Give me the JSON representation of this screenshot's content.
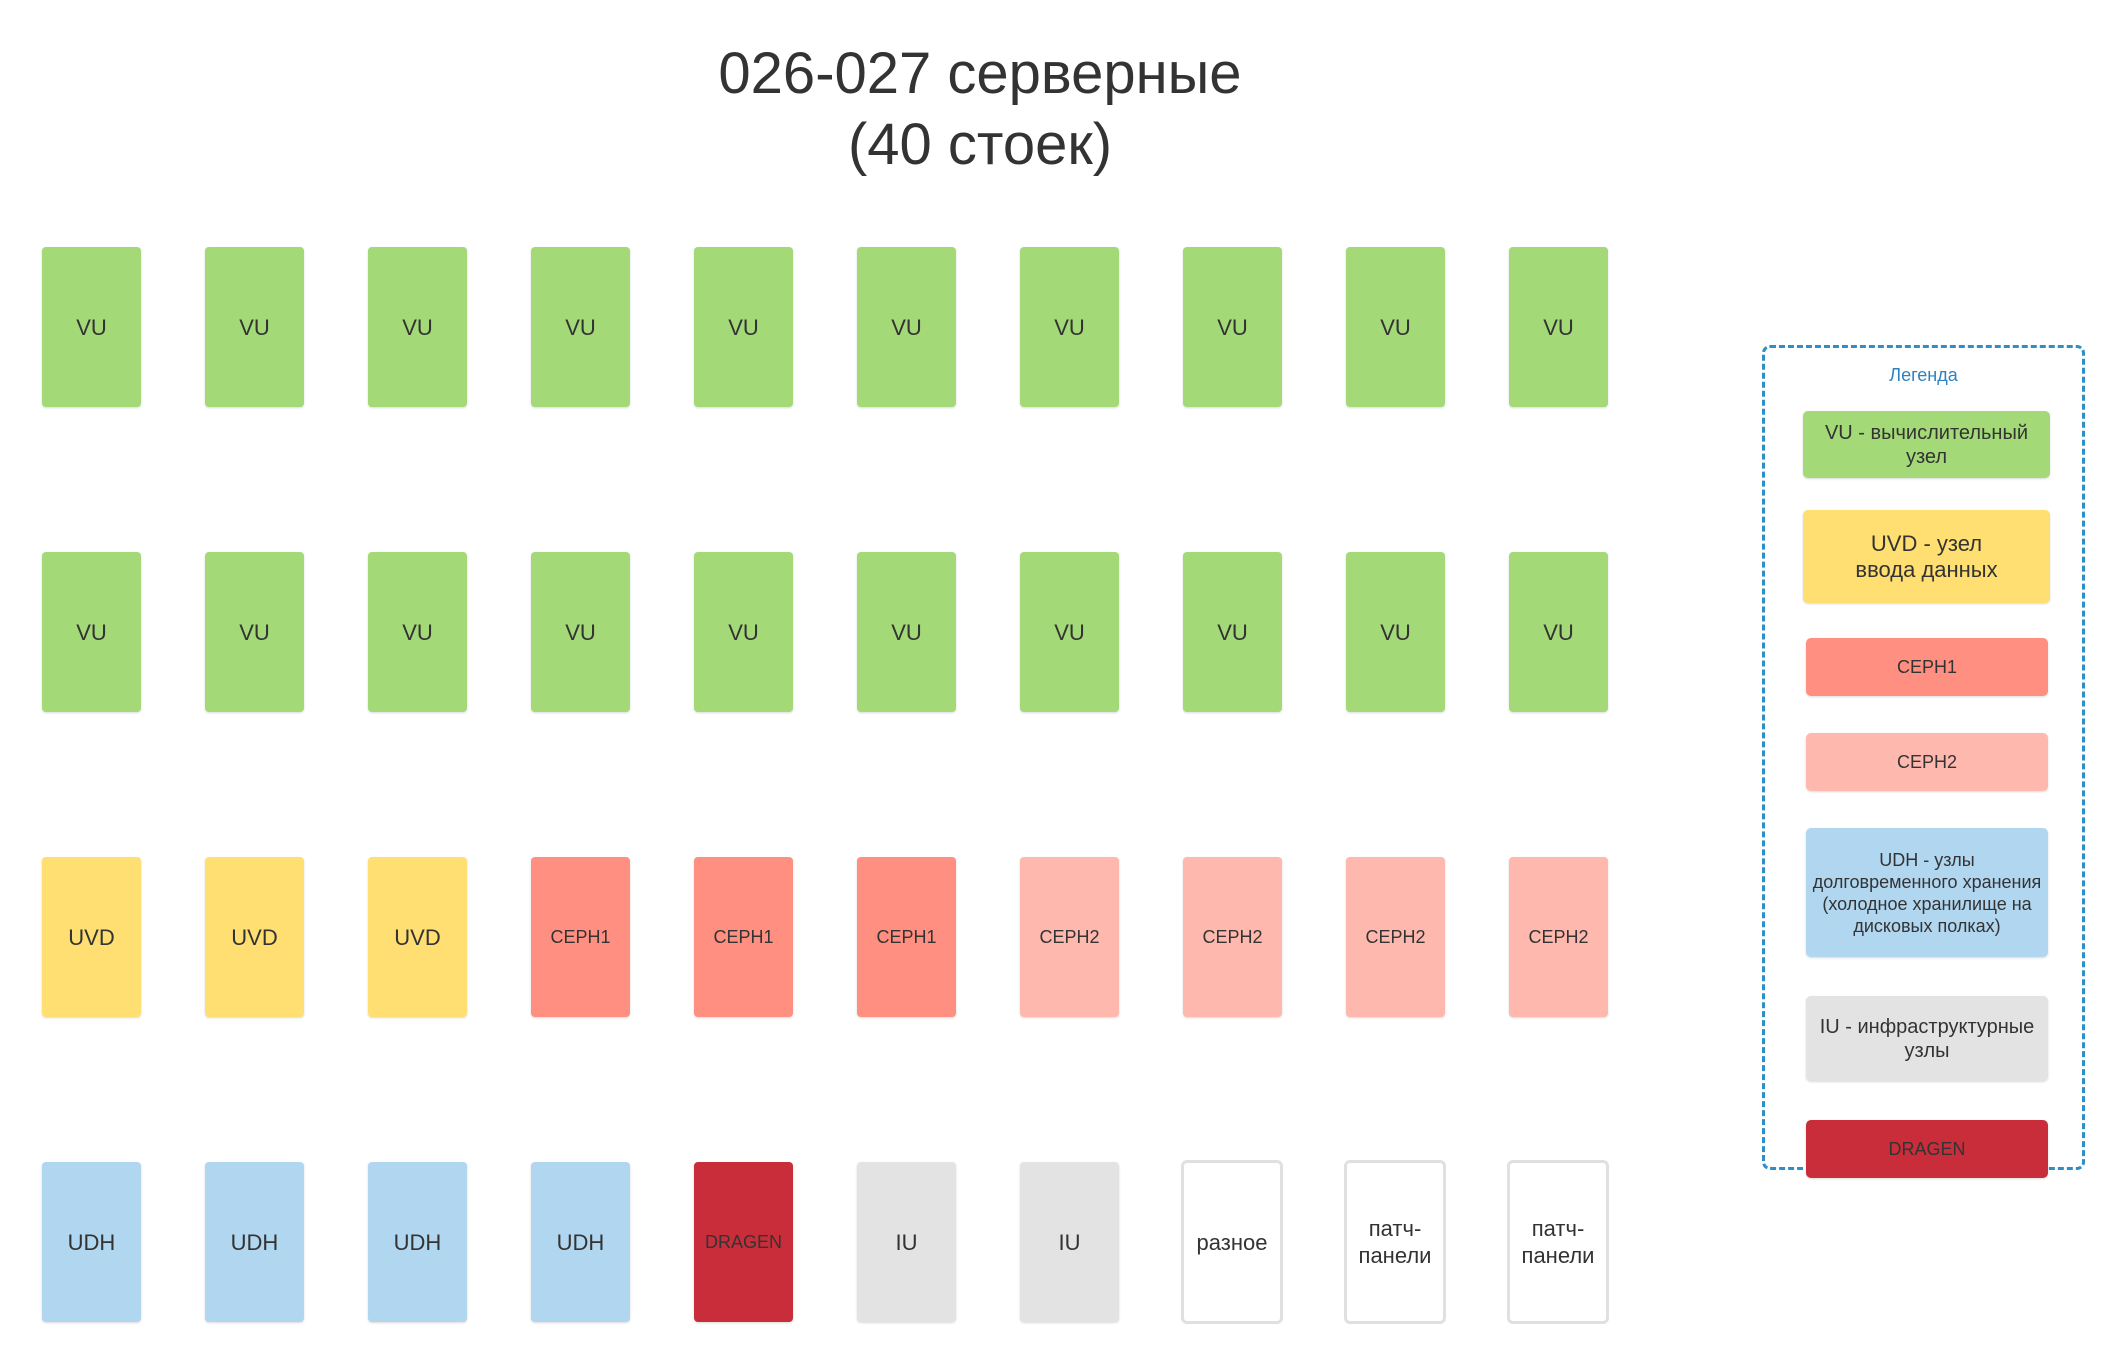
{
  "title": {
    "line1": "026-027 серверные",
    "line2": "(40 стоек)"
  },
  "colors": {
    "vu": "#a3d977",
    "uvd": "#ffdf71",
    "ceph1": "#ff8f80",
    "ceph2": "#ffb8ad",
    "udh": "#b1d6f0",
    "iu": "#e3e3e3",
    "dragen": "#c92d39",
    "other": "#ffffff"
  },
  "rows": [
    {
      "racks": [
        {
          "label": "VU",
          "type": "vu"
        },
        {
          "label": "VU",
          "type": "vu"
        },
        {
          "label": "VU",
          "type": "vu"
        },
        {
          "label": "VU",
          "type": "vu"
        },
        {
          "label": "VU",
          "type": "vu"
        },
        {
          "label": "VU",
          "type": "vu"
        },
        {
          "label": "VU",
          "type": "vu"
        },
        {
          "label": "VU",
          "type": "vu"
        },
        {
          "label": "VU",
          "type": "vu"
        },
        {
          "label": "VU",
          "type": "vu"
        }
      ]
    },
    {
      "racks": [
        {
          "label": "VU",
          "type": "vu"
        },
        {
          "label": "VU",
          "type": "vu"
        },
        {
          "label": "VU",
          "type": "vu"
        },
        {
          "label": "VU",
          "type": "vu"
        },
        {
          "label": "VU",
          "type": "vu"
        },
        {
          "label": "VU",
          "type": "vu"
        },
        {
          "label": "VU",
          "type": "vu"
        },
        {
          "label": "VU",
          "type": "vu"
        },
        {
          "label": "VU",
          "type": "vu"
        },
        {
          "label": "VU",
          "type": "vu"
        }
      ]
    },
    {
      "racks": [
        {
          "label": "UVD",
          "type": "uvd"
        },
        {
          "label": "UVD",
          "type": "uvd"
        },
        {
          "label": "UVD",
          "type": "uvd"
        },
        {
          "label": "CEPH1",
          "type": "ceph1"
        },
        {
          "label": "CEPH1",
          "type": "ceph1"
        },
        {
          "label": "CEPH1",
          "type": "ceph1"
        },
        {
          "label": "CEPH2",
          "type": "ceph2"
        },
        {
          "label": "CEPH2",
          "type": "ceph2"
        },
        {
          "label": "CEPH2",
          "type": "ceph2"
        },
        {
          "label": "CEPH2",
          "type": "ceph2"
        }
      ]
    },
    {
      "racks": [
        {
          "label": "UDH",
          "type": "udh"
        },
        {
          "label": "UDH",
          "type": "udh"
        },
        {
          "label": "UDH",
          "type": "udh"
        },
        {
          "label": "UDH",
          "type": "udh"
        },
        {
          "label": "DRAGEN",
          "type": "dragen"
        },
        {
          "label": "IU",
          "type": "iu"
        },
        {
          "label": "IU",
          "type": "iu"
        },
        {
          "label": "разное",
          "type": "other"
        },
        {
          "label": "патч-\nпанели",
          "type": "other"
        },
        {
          "label": "патч-\nпанели",
          "type": "other"
        }
      ]
    }
  ],
  "legend": {
    "title": "Легенда",
    "items": [
      {
        "label": "VU - вычислительный\nузел",
        "type": "vu"
      },
      {
        "label": "UVD - узел\nввода данных",
        "type": "uvd"
      },
      {
        "label": "CEPH1",
        "type": "ceph1"
      },
      {
        "label": "CEPH2",
        "type": "ceph2"
      },
      {
        "label": "UDH - узлы\nдолговременного хранения\n(холодное хранилище на\nдисковых полках)",
        "type": "udh"
      },
      {
        "label": "IU - инфраструктурные\nузлы",
        "type": "iu"
      },
      {
        "label": "DRAGEN",
        "type": "dragen"
      }
    ]
  }
}
